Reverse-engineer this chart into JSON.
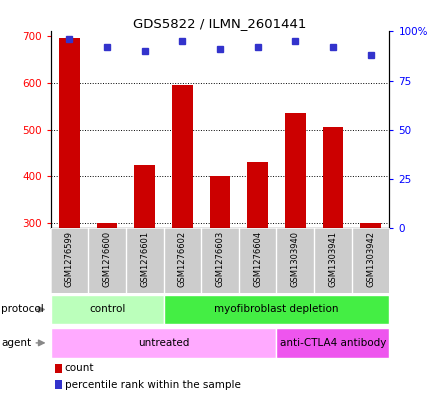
{
  "title": "GDS5822 / ILMN_2601441",
  "samples": [
    "GSM1276599",
    "GSM1276600",
    "GSM1276601",
    "GSM1276602",
    "GSM1276603",
    "GSM1276604",
    "GSM1303940",
    "GSM1303941",
    "GSM1303942"
  ],
  "counts": [
    695,
    300,
    425,
    595,
    400,
    430,
    535,
    505,
    300
  ],
  "percentile_ranks": [
    96,
    92,
    90,
    95,
    91,
    92,
    95,
    92,
    88
  ],
  "bar_color": "#cc0000",
  "dot_color": "#3333cc",
  "ylim_left": [
    290,
    710
  ],
  "ylim_right": [
    0,
    100
  ],
  "yticks_left": [
    300,
    400,
    500,
    600,
    700
  ],
  "yticks_right": [
    0,
    25,
    50,
    75,
    100
  ],
  "ytick_right_labels": [
    "0",
    "25",
    "50",
    "75",
    "100%"
  ],
  "protocol_groups": [
    {
      "label": "control",
      "start": 0,
      "end": 3,
      "color": "#bbffbb"
    },
    {
      "label": "myofibroblast depletion",
      "start": 3,
      "end": 9,
      "color": "#44ee44"
    }
  ],
  "agent_groups": [
    {
      "label": "untreated",
      "start": 0,
      "end": 6,
      "color": "#ffaaff"
    },
    {
      "label": "anti-CTLA4 antibody",
      "start": 6,
      "end": 9,
      "color": "#ee55ee"
    }
  ],
  "legend_count_label": "count",
  "legend_percentile_label": "percentile rank within the sample",
  "background_color": "#ffffff",
  "plot_bg_color": "#ffffff",
  "grid_color": "#000000",
  "sample_band_color": "#cccccc"
}
